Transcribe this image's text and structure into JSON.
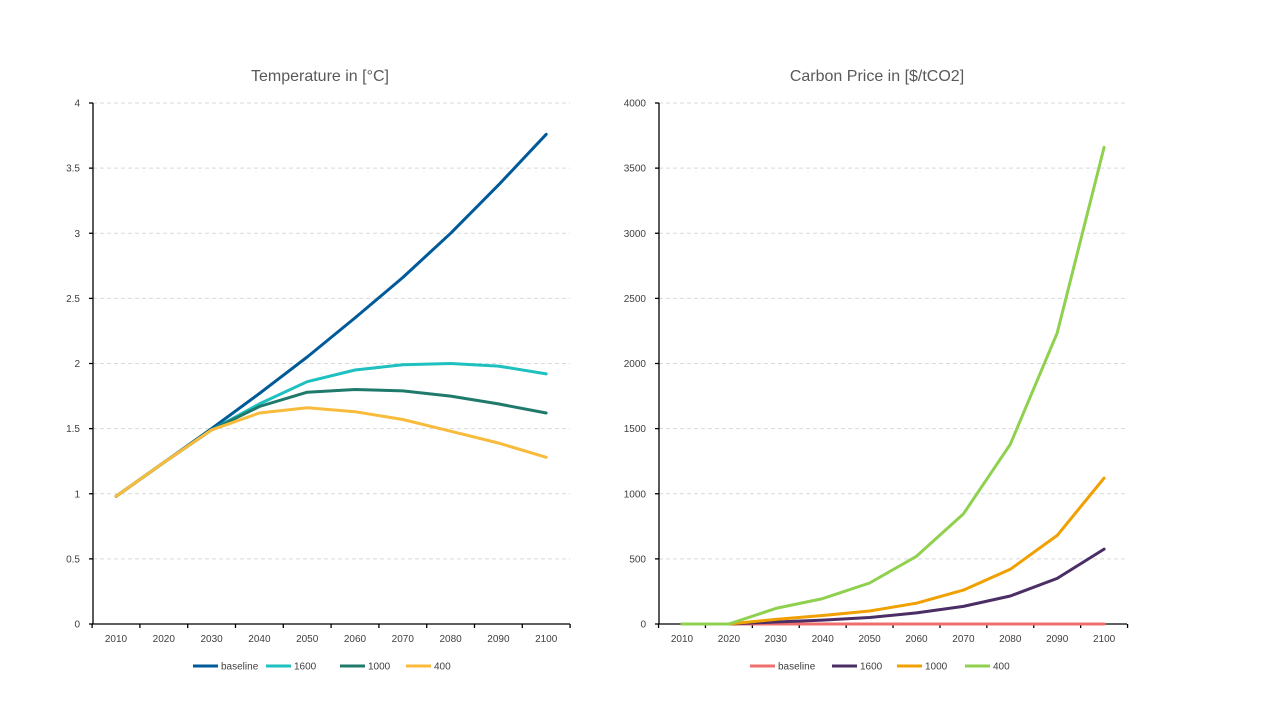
{
  "chart_data": [
    {
      "type": "line",
      "title": "Temperature in  [°C]",
      "xlabel": "",
      "ylabel": "",
      "x": [
        2010,
        2020,
        2030,
        2040,
        2050,
        2060,
        2070,
        2080,
        2090,
        2100
      ],
      "ylim": [
        0,
        4
      ],
      "yticks": [
        0,
        0.5,
        1,
        1.5,
        2,
        2.5,
        3,
        3.5,
        4
      ],
      "ytick_labels": [
        "0",
        "0.5",
        "1",
        "1.5",
        "2",
        "2.5",
        "3",
        "3.5",
        "4"
      ],
      "grid": true,
      "legend_position": "bottom",
      "series": [
        {
          "name": "baseline",
          "color": "#005a9a",
          "values": [
            0.98,
            1.24,
            1.5,
            1.77,
            2.05,
            2.35,
            2.66,
            3.0,
            3.37,
            3.76
          ]
        },
        {
          "name": "1600",
          "color": "#1ec0c0",
          "values": [
            0.98,
            1.24,
            1.49,
            1.69,
            1.86,
            1.95,
            1.99,
            2.0,
            1.98,
            1.92
          ]
        },
        {
          "name": "1000",
          "color": "#1f7a6b",
          "values": [
            0.98,
            1.24,
            1.49,
            1.67,
            1.78,
            1.8,
            1.79,
            1.75,
            1.69,
            1.62
          ]
        },
        {
          "name": "400",
          "color": "#f8bb3c",
          "values": [
            0.98,
            1.24,
            1.49,
            1.62,
            1.66,
            1.63,
            1.57,
            1.48,
            1.39,
            1.28
          ]
        }
      ]
    },
    {
      "type": "line",
      "title": "Carbon Price in [$/tCO2]",
      "xlabel": "",
      "ylabel": "",
      "x": [
        2010,
        2020,
        2030,
        2040,
        2050,
        2060,
        2070,
        2080,
        2090,
        2100
      ],
      "ylim": [
        0,
        4000
      ],
      "yticks": [
        0,
        500,
        1000,
        1500,
        2000,
        2500,
        3000,
        3500,
        4000
      ],
      "ytick_labels": [
        "0",
        "500",
        "1000",
        "1500",
        "2000",
        "2500",
        "3000",
        "3500",
        "4000"
      ],
      "grid": true,
      "legend_position": "bottom",
      "series": [
        {
          "name": "baseline",
          "color": "#ef6f6c",
          "values": [
            0,
            0,
            0,
            0,
            0,
            0,
            0,
            0,
            0,
            0
          ]
        },
        {
          "name": "1600",
          "color": "#4b2e66",
          "values": [
            0,
            0,
            15,
            30,
            50,
            85,
            135,
            215,
            350,
            575
          ]
        },
        {
          "name": "1000",
          "color": "#f0a000",
          "values": [
            0,
            0,
            35,
            65,
            100,
            160,
            260,
            420,
            680,
            1120
          ]
        },
        {
          "name": "400",
          "color": "#8fd14f",
          "values": [
            0,
            0,
            120,
            195,
            315,
            520,
            845,
            1380,
            2235,
            3660
          ]
        }
      ]
    }
  ]
}
